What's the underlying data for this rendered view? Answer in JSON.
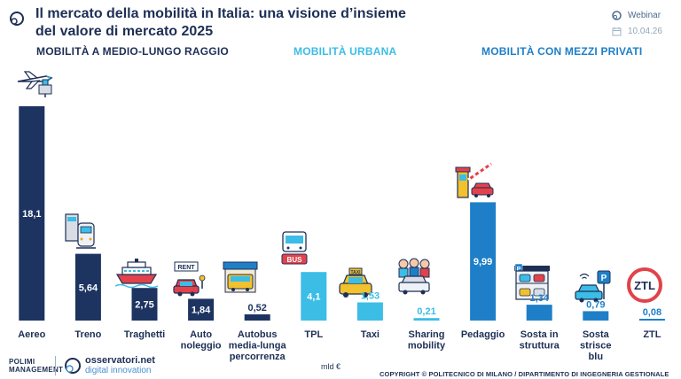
{
  "header": {
    "title_line1": "Il mercato della mobilità in Italia: una visione d’insieme",
    "title_line2": "del valore di mercato 2025",
    "webinar_label": "Webinar",
    "date": "10.04.26"
  },
  "sections": {
    "long_range": "MOBILITÀ A MEDIO-LUNGO RAGGIO",
    "urban": "MOBILITÀ URBANA",
    "private": "MOBILITÀ CON MEZZI PRIVATI"
  },
  "colors": {
    "long_range": "#1d3461",
    "urban": "#3bbde6",
    "private": "#1e7fc8"
  },
  "chart_data": {
    "type": "bar",
    "title": "Il mercato della mobilità in Italia: una visione d’insieme del valore di mercato 2025",
    "ylabel": "mld €",
    "ylim": [
      0,
      18.1
    ],
    "grid": false,
    "categories": [
      "Aereo",
      "Treno",
      "Traghetti",
      "Auto noleggio",
      "Autobus media-lunga percorrenza",
      "TPL",
      "Taxi",
      "Sharing mobility",
      "Pedaggio",
      "Sosta in struttura",
      "Sosta strisce blu",
      "ZTL"
    ],
    "category_lines": [
      [
        "Aereo"
      ],
      [
        "Treno"
      ],
      [
        "Traghetti"
      ],
      [
        "Auto",
        "noleggio"
      ],
      [
        "Autobus",
        "media-lunga",
        "percorrenza"
      ],
      [
        "TPL"
      ],
      [
        "Taxi"
      ],
      [
        "Sharing",
        "mobility"
      ],
      [
        "Pedaggio"
      ],
      [
        "Sosta in",
        "struttura"
      ],
      [
        "Sosta",
        "strisce",
        "blu"
      ],
      [
        "ZTL"
      ]
    ],
    "values": [
      18.1,
      5.64,
      2.75,
      1.84,
      0.52,
      4.1,
      1.53,
      0.21,
      9.99,
      1.34,
      0.79,
      0.08
    ],
    "value_labels": [
      "18,1",
      "5,64",
      "2,75",
      "1,84",
      "0,52",
      "4,1",
      "1,53",
      "0,21",
      "9,99",
      "1,34",
      "0,79",
      "0,08"
    ],
    "groups": [
      "long_range",
      "long_range",
      "long_range",
      "long_range",
      "long_range",
      "urban",
      "urban",
      "urban",
      "private",
      "private",
      "private",
      "private"
    ],
    "icons": [
      "airplane-icon",
      "train-icon",
      "ferry-icon",
      "car-rental-icon",
      "bus-station-icon",
      "bus-stop-icon",
      "taxi-icon",
      "car-sharing-icon",
      "toll-barrier-icon",
      "parking-garage-icon",
      "smart-parking-icon",
      "ztl-sign-icon"
    ],
    "ztl_sign_text": "ZTL"
  },
  "footer": {
    "polimi_line1": "POLIMI",
    "polimi_line2": "MANAGEMENT",
    "osservatori_line1": "osservatori.net",
    "osservatori_line2": "digital innovation",
    "unit": "mld €",
    "copyright": "COPYRIGHT © POLITECNICO DI MILANO / DIPARTIMENTO DI INGEGNERIA GESTIONALE"
  }
}
